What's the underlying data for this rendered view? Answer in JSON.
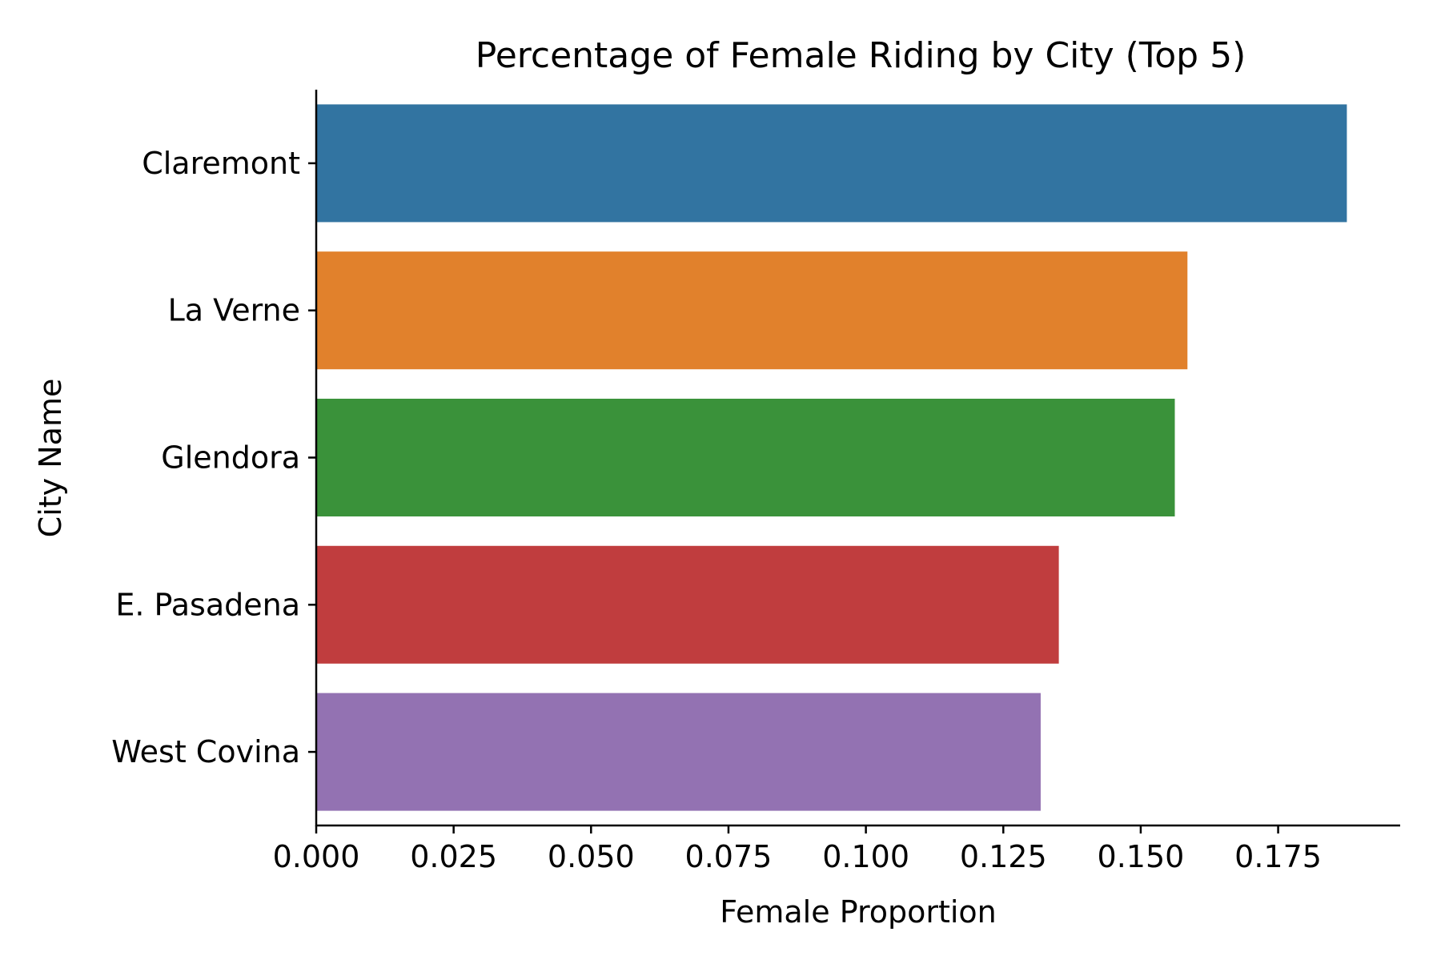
{
  "chart_data": {
    "type": "bar",
    "orientation": "horizontal",
    "title": "Percentage of Female Riding by City (Top 5)",
    "xlabel": "Female Proportion",
    "ylabel": "City Name",
    "categories": [
      "Claremont",
      "La Verne",
      "Glendora",
      "E. Pasadena",
      "West Covina"
    ],
    "values": [
      0.1875,
      0.1585,
      0.1562,
      0.1351,
      0.1318
    ],
    "colors": [
      "#3274a1",
      "#e1812c",
      "#3a923a",
      "#c03d3e",
      "#9372b2"
    ],
    "xlim": [
      0,
      0.1972
    ],
    "xticks": [
      0,
      0.025,
      0.05,
      0.075,
      0.1,
      0.125,
      0.15,
      0.175
    ],
    "xtick_labels": [
      "0.000",
      "0.025",
      "0.050",
      "0.075",
      "0.100",
      "0.125",
      "0.150",
      "0.175"
    ],
    "grid": false,
    "legend": "none"
  }
}
